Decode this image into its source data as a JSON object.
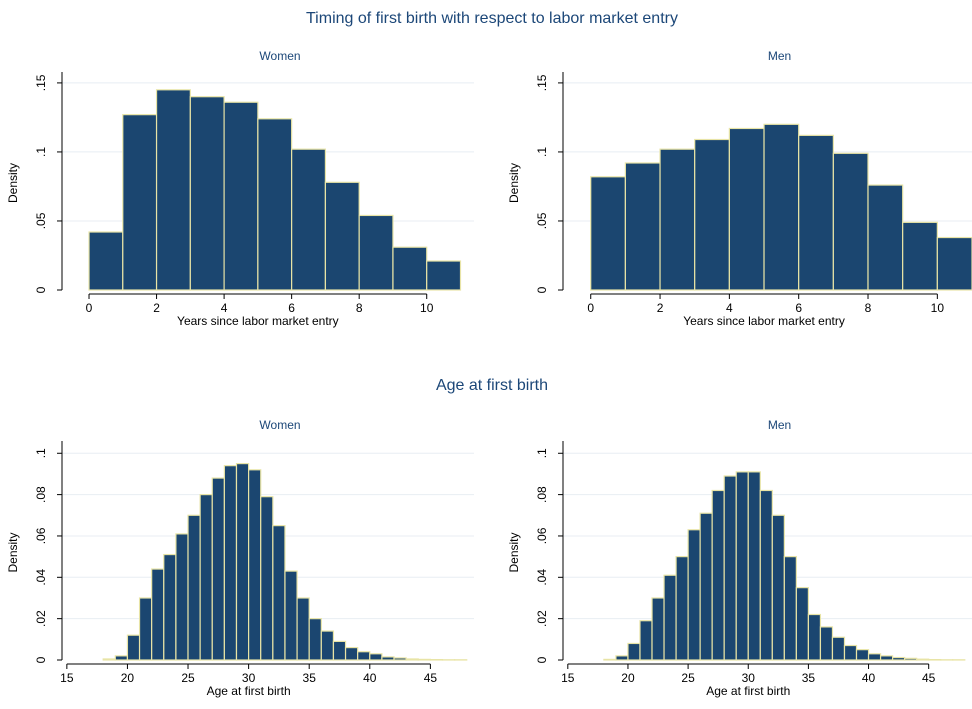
{
  "colors": {
    "bar_fill": "#1b4670",
    "bar_edge": "#e8e4a6",
    "title": "#1c4778",
    "axis": "#000000",
    "grid": "#e8eef3"
  },
  "sections": [
    {
      "title": "Timing of first birth with respect to labor market entry"
    },
    {
      "title": "Age at first birth"
    }
  ],
  "chart_data": [
    {
      "type": "bar",
      "title": "Women",
      "xlabel": "Years since labor market entry",
      "ylabel": "Density",
      "xlim": [
        -0.8,
        11.4
      ],
      "ylim": [
        0,
        0.155
      ],
      "xticks": [
        {
          "v": 0,
          "label": "0"
        },
        {
          "v": 2,
          "label": "2"
        },
        {
          "v": 4,
          "label": "4"
        },
        {
          "v": 6,
          "label": "6"
        },
        {
          "v": 8,
          "label": "8"
        },
        {
          "v": 10,
          "label": "10"
        }
      ],
      "yticks": [
        {
          "v": 0,
          "label": "0"
        },
        {
          "v": 0.05,
          "label": ".05"
        },
        {
          "v": 0.1,
          "label": ".1"
        },
        {
          "v": 0.15,
          "label": ".15"
        }
      ],
      "bin_start": 0,
      "bin_width": 1,
      "values": [
        0.042,
        0.127,
        0.145,
        0.14,
        0.136,
        0.124,
        0.102,
        0.078,
        0.054,
        0.031,
        0.021
      ]
    },
    {
      "type": "bar",
      "title": "Men",
      "xlabel": "Years since labor market entry",
      "ylabel": "Density",
      "xlim": [
        -0.8,
        11.0
      ],
      "ylim": [
        0,
        0.155
      ],
      "xticks": [
        {
          "v": 0,
          "label": "0"
        },
        {
          "v": 2,
          "label": "2"
        },
        {
          "v": 4,
          "label": "4"
        },
        {
          "v": 6,
          "label": "6"
        },
        {
          "v": 8,
          "label": "8"
        },
        {
          "v": 10,
          "label": "10"
        }
      ],
      "yticks": [
        {
          "v": 0,
          "label": "0"
        },
        {
          "v": 0.05,
          "label": ".05"
        },
        {
          "v": 0.1,
          "label": ".1"
        },
        {
          "v": 0.15,
          "label": ".15"
        }
      ],
      "bin_start": 0,
      "bin_width": 1,
      "values": [
        0.082,
        0.092,
        0.102,
        0.109,
        0.117,
        0.12,
        0.112,
        0.099,
        0.076,
        0.049,
        0.038
      ]
    },
    {
      "type": "bar",
      "title": "Women",
      "xlabel": "Age at first birth",
      "ylabel": "Density",
      "xlim": [
        14.6,
        48.6
      ],
      "ylim": [
        0,
        0.104
      ],
      "xticks": [
        {
          "v": 15,
          "label": "15"
        },
        {
          "v": 20,
          "label": "20"
        },
        {
          "v": 25,
          "label": "25"
        },
        {
          "v": 30,
          "label": "30"
        },
        {
          "v": 35,
          "label": "35"
        },
        {
          "v": 40,
          "label": "40"
        },
        {
          "v": 45,
          "label": "45"
        }
      ],
      "yticks": [
        {
          "v": 0,
          "label": "0"
        },
        {
          "v": 0.02,
          "label": ".02"
        },
        {
          "v": 0.04,
          "label": ".04"
        },
        {
          "v": 0.06,
          "label": ".06"
        },
        {
          "v": 0.08,
          "label": ".08"
        },
        {
          "v": 0.1,
          "label": ".1"
        }
      ],
      "bin_start": 15,
      "bin_width": 1,
      "values": [
        0.0,
        0.0,
        0.0,
        0.0005,
        0.002,
        0.012,
        0.03,
        0.044,
        0.051,
        0.061,
        0.07,
        0.08,
        0.088,
        0.094,
        0.095,
        0.092,
        0.079,
        0.065,
        0.043,
        0.03,
        0.02,
        0.014,
        0.009,
        0.006,
        0.004,
        0.003,
        0.0015,
        0.001,
        0.0005,
        0.0003,
        0.0002,
        0.0001,
        0.0001
      ]
    },
    {
      "type": "bar",
      "title": "Men",
      "xlabel": "Age at first birth",
      "ylabel": "Density",
      "xlim": [
        14.6,
        48.6
      ],
      "ylim": [
        0,
        0.104
      ],
      "xticks": [
        {
          "v": 15,
          "label": "15"
        },
        {
          "v": 20,
          "label": "20"
        },
        {
          "v": 25,
          "label": "25"
        },
        {
          "v": 30,
          "label": "30"
        },
        {
          "v": 35,
          "label": "35"
        },
        {
          "v": 40,
          "label": "40"
        },
        {
          "v": 45,
          "label": "45"
        }
      ],
      "yticks": [
        {
          "v": 0,
          "label": "0"
        },
        {
          "v": 0.02,
          "label": ".02"
        },
        {
          "v": 0.04,
          "label": ".04"
        },
        {
          "v": 0.06,
          "label": ".06"
        },
        {
          "v": 0.08,
          "label": ".08"
        },
        {
          "v": 0.1,
          "label": ".1"
        }
      ],
      "bin_start": 15,
      "bin_width": 1,
      "values": [
        0.0,
        0.0,
        0.0,
        0.0003,
        0.002,
        0.008,
        0.019,
        0.03,
        0.041,
        0.05,
        0.063,
        0.071,
        0.082,
        0.089,
        0.091,
        0.091,
        0.082,
        0.07,
        0.05,
        0.035,
        0.022,
        0.016,
        0.011,
        0.007,
        0.005,
        0.003,
        0.002,
        0.0012,
        0.0008,
        0.0004,
        0.0002,
        0.0001,
        0.0001
      ]
    }
  ]
}
